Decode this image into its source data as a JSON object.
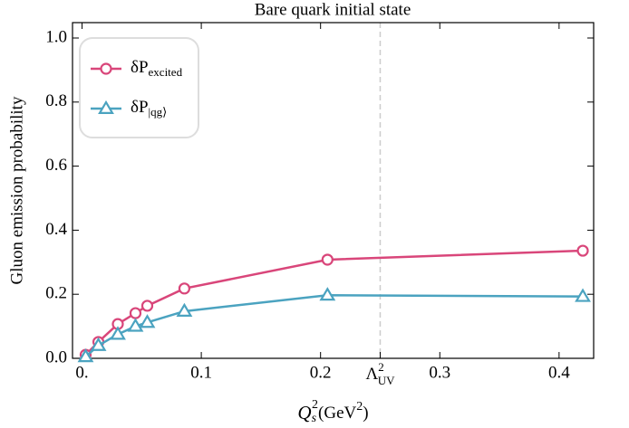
{
  "chart_data": {
    "type": "line",
    "title": "Bare quark initial state",
    "ylabel": "Gluon emission probability",
    "xlabel": {
      "base": "Q",
      "sub": "s",
      "sup": "2",
      "unit": "(GeV",
      "unit_sup": "2",
      "unit_end": ")"
    },
    "x": [
      0.003,
      0.0137,
      0.03,
      0.0448,
      0.0547,
      0.0858,
      0.2058,
      0.4199
    ],
    "series": [
      {
        "name": "δP",
        "name_sub": "excited",
        "color": "#d9467a",
        "marker": "circle",
        "values": [
          0.011,
          0.051,
          0.107,
          0.141,
          0.164,
          0.218,
          0.308,
          0.336
        ]
      },
      {
        "name": "δP",
        "name_sub": "|qg⟩",
        "color": "#4ba3c0",
        "marker": "triangle",
        "values": [
          0.005,
          0.04,
          0.075,
          0.1,
          0.112,
          0.147,
          0.197,
          0.193
        ]
      }
    ],
    "xlim": [
      -0.008,
      0.429
    ],
    "ylim": [
      0,
      1.048
    ],
    "xticks": [
      {
        "value": 0,
        "label": "0."
      },
      0.1,
      0.2,
      0.3,
      0.4
    ],
    "yticks": [
      {
        "value": 0,
        "label": "0.0"
      },
      0.2,
      0.4,
      0.6,
      0.8,
      {
        "value": 1,
        "label": "1.0"
      }
    ],
    "vline": {
      "x": 0.25,
      "label": "Λ",
      "label_sup": "2",
      "label_sub": "UV",
      "color": "#cccccc"
    },
    "legend": "upper left"
  }
}
